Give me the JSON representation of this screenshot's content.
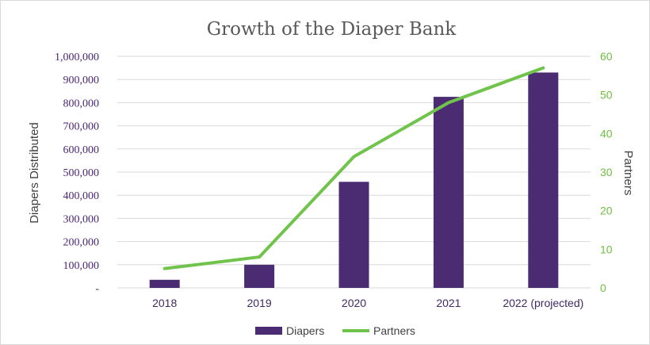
{
  "chart_data": {
    "type": "bar",
    "title": "Growth of the Diaper Bank",
    "categories": [
      "2018",
      "2019",
      "2020",
      "2021",
      "2022 (projected)"
    ],
    "series": [
      {
        "name": "Diapers",
        "type": "bar",
        "axis": "left",
        "color": "#4b2c72",
        "values": [
          35000,
          100000,
          458000,
          825000,
          930000
        ]
      },
      {
        "name": "Partners",
        "type": "line",
        "axis": "right",
        "color": "#70c44b",
        "values": [
          5,
          8,
          34,
          48,
          57
        ]
      }
    ],
    "ylabel": "Diapers Distributed",
    "y2label": "Partners",
    "ylim": [
      0,
      1000000
    ],
    "y2lim": [
      0,
      60
    ],
    "yticks": [
      "-",
      "100,000",
      "200,000",
      "300,000",
      "400,000",
      "500,000",
      "600,000",
      "700,000",
      "800,000",
      "900,000",
      "1,000,000"
    ],
    "y2ticks": [
      "0",
      "10",
      "20",
      "30",
      "40",
      "50",
      "60"
    ],
    "grid": true,
    "legend": "bottom"
  }
}
